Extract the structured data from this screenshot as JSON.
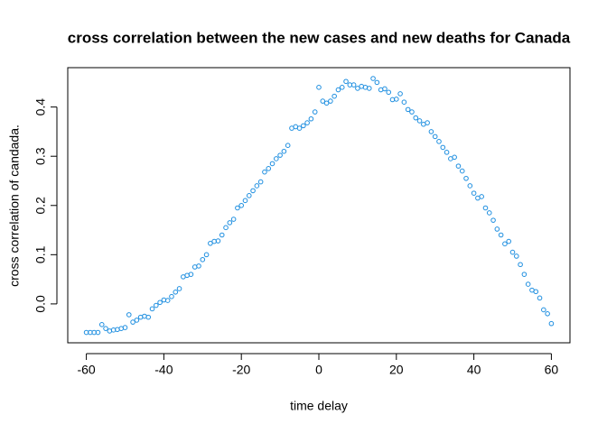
{
  "chart_data": {
    "type": "scatter",
    "title": "cross correlation between the new cases and new deaths for Canada",
    "x_label": "time delay",
    "y_label": "cross correlation of candada.",
    "color": "#1f8fe0",
    "x": [
      -60,
      -59,
      -58,
      -57,
      -56,
      -55,
      -54,
      -53,
      -52,
      -51,
      -50,
      -49,
      -48,
      -47,
      -46,
      -45,
      -44,
      -43,
      -42,
      -41,
      -40,
      -39,
      -38,
      -37,
      -36,
      -35,
      -34,
      -33,
      -32,
      -31,
      -30,
      -29,
      -28,
      -27,
      -26,
      -25,
      -24,
      -23,
      -22,
      -21,
      -20,
      -19,
      -18,
      -17,
      -16,
      -15,
      -14,
      -13,
      -12,
      -11,
      -10,
      -9,
      -8,
      -7,
      -6,
      -5,
      -4,
      -3,
      -2,
      -1,
      0,
      1,
      2,
      3,
      4,
      5,
      6,
      7,
      8,
      9,
      10,
      11,
      12,
      13,
      14,
      15,
      16,
      17,
      18,
      19,
      20,
      21,
      22,
      23,
      24,
      25,
      26,
      27,
      28,
      29,
      30,
      31,
      32,
      33,
      34,
      35,
      36,
      37,
      38,
      39,
      40,
      41,
      42,
      43,
      44,
      45,
      46,
      47,
      48,
      49,
      50,
      51,
      52,
      53,
      54,
      55,
      56,
      57,
      58,
      59,
      60
    ],
    "values": [
      -0.058,
      -0.058,
      -0.058,
      -0.058,
      -0.042,
      -0.05,
      -0.055,
      -0.053,
      -0.052,
      -0.05,
      -0.048,
      -0.022,
      -0.037,
      -0.033,
      -0.027,
      -0.025,
      -0.027,
      -0.01,
      -0.003,
      0.003,
      0.008,
      0.007,
      0.015,
      0.024,
      0.031,
      0.055,
      0.058,
      0.06,
      0.075,
      0.077,
      0.09,
      0.1,
      0.123,
      0.127,
      0.128,
      0.14,
      0.155,
      0.165,
      0.172,
      0.195,
      0.2,
      0.21,
      0.22,
      0.23,
      0.24,
      0.248,
      0.268,
      0.275,
      0.285,
      0.295,
      0.302,
      0.31,
      0.322,
      0.357,
      0.36,
      0.357,
      0.362,
      0.368,
      0.376,
      0.39,
      0.44,
      0.412,
      0.408,
      0.412,
      0.422,
      0.435,
      0.44,
      0.452,
      0.445,
      0.445,
      0.438,
      0.442,
      0.44,
      0.438,
      0.458,
      0.45,
      0.435,
      0.437,
      0.43,
      0.415,
      0.416,
      0.427,
      0.41,
      0.395,
      0.39,
      0.378,
      0.372,
      0.365,
      0.368,
      0.35,
      0.34,
      0.33,
      0.318,
      0.308,
      0.295,
      0.298,
      0.28,
      0.27,
      0.255,
      0.24,
      0.225,
      0.215,
      0.218,
      0.195,
      0.185,
      0.17,
      0.152,
      0.14,
      0.122,
      0.127,
      0.105,
      0.097,
      0.08,
      0.06,
      0.04,
      0.028,
      0.025,
      0.012,
      -0.012,
      -0.02,
      -0.04
    ],
    "xlim": [
      -64.8,
      64.8
    ],
    "ylim": [
      -0.079,
      0.48
    ],
    "xticks": [
      -60,
      -40,
      -20,
      0,
      20,
      40,
      60
    ],
    "yticks": [
      {
        "value": 0,
        "label": "0.0"
      },
      0.1,
      0.2,
      0.3,
      0.4
    ],
    "grid": false
  }
}
